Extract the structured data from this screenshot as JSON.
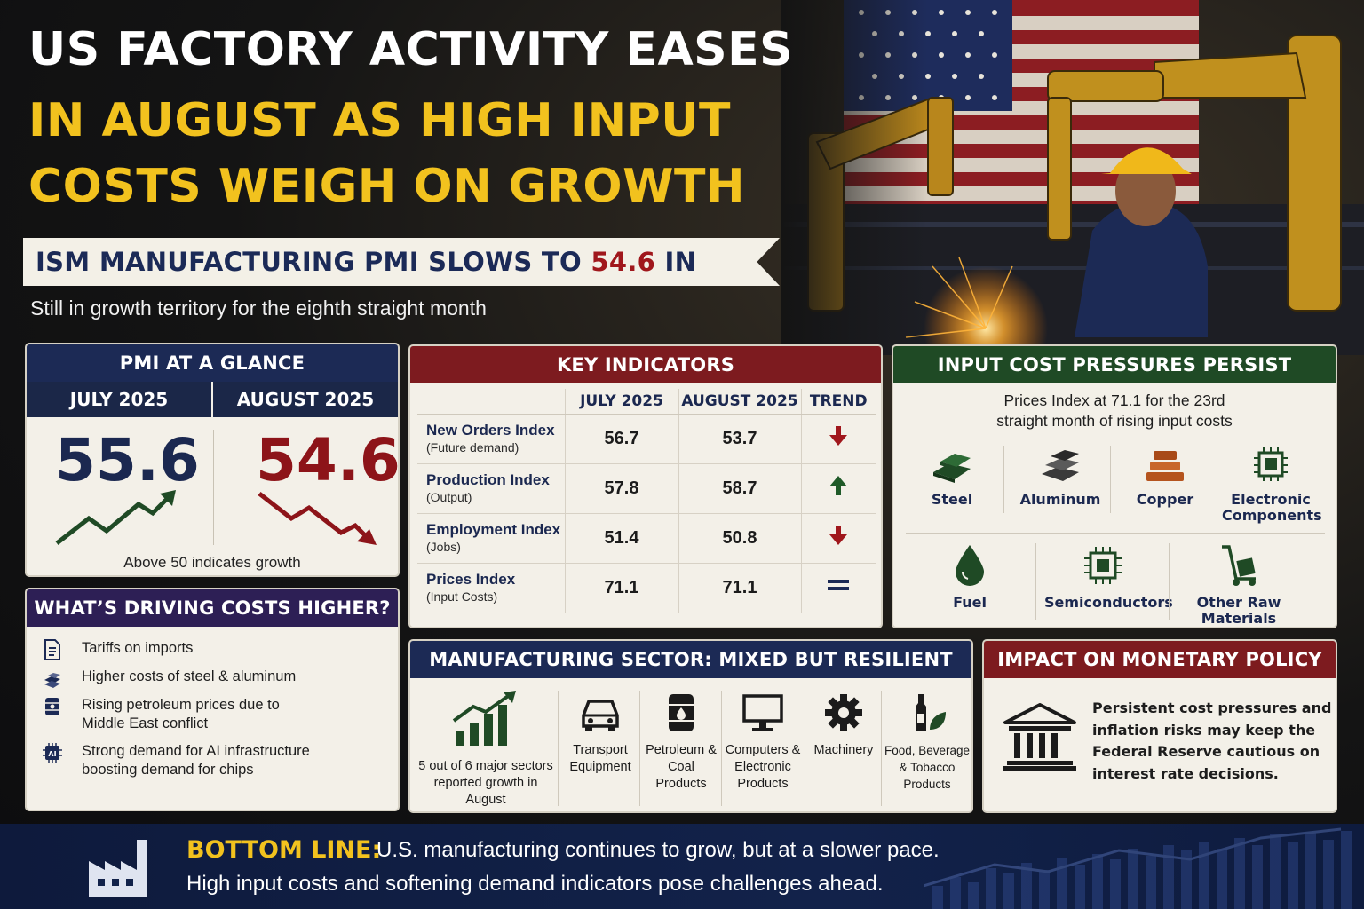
{
  "headline": {
    "line1": "US FACTORY ACTIVITY EASES",
    "line2": "IN AUGUST AS HIGH INPUT",
    "line3": "COSTS WEIGH ON GROWTH"
  },
  "subheadline": {
    "prefix": "ISM MANUFACTURING PMI SLOWS TO ",
    "value": "54.6",
    "suffix": " IN AUGUST"
  },
  "tagline": "Still in growth territory for the eighth straight month",
  "glance": {
    "title": "PMI AT A GLANCE",
    "july_label": "JULY 2025",
    "august_label": "AUGUST 2025",
    "july_value": "55.6",
    "august_value": "54.6",
    "note": "Above 50 indicates growth"
  },
  "driving": {
    "title": "WHAT’S DRIVING COSTS HIGHER?",
    "items": [
      {
        "icon": "document-icon",
        "text": "Tariffs on imports"
      },
      {
        "icon": "metal-bars-icon",
        "text": "Higher costs of steel & aluminum"
      },
      {
        "icon": "oil-barrel-icon",
        "text": "Rising petroleum prices due to Middle East conflict"
      },
      {
        "icon": "ai-chip-icon",
        "text": "Strong demand for AI infrastructure boosting demand for chips"
      }
    ],
    "ai_chip_text": "AI"
  },
  "key_indicators": {
    "title": "KEY INDICATORS",
    "columns": [
      "JULY 2025",
      "AUGUST 2025",
      "TREND"
    ],
    "rows": [
      {
        "label": "New Orders Index",
        "sub": "(Future demand)",
        "july": "56.7",
        "august": "53.7",
        "trend": "down"
      },
      {
        "label": "Production Index",
        "sub": "(Output)",
        "july": "57.8",
        "august": "58.7",
        "trend": "up"
      },
      {
        "label": "Employment Index",
        "sub": "(Jobs)",
        "july": "51.4",
        "august": "50.8",
        "trend": "down"
      },
      {
        "label": "Prices Index",
        "sub": "(Input Costs)",
        "july": "71.1",
        "august": "71.1",
        "trend": "flat"
      }
    ]
  },
  "input_costs": {
    "title": "INPUT COST PRESSURES PERSIST",
    "desc_line1": "Prices Index at 71.1 for the 23rd",
    "desc_line2": "straight month of rising input costs",
    "items": [
      {
        "icon": "steel-icon",
        "label": "Steel"
      },
      {
        "icon": "aluminum-icon",
        "label": "Aluminum"
      },
      {
        "icon": "copper-icon",
        "label": "Copper"
      },
      {
        "icon": "electronic-components-icon",
        "label": "Electronic Components"
      },
      {
        "icon": "fuel-drop-icon",
        "label": "Fuel"
      },
      {
        "icon": "semiconductor-icon",
        "label": "Semiconductors"
      },
      {
        "icon": "hand-truck-icon",
        "label": "Other Raw Materials"
      }
    ]
  },
  "manufacturing": {
    "title": "MANUFACTURING SECTOR: MIXED BUT RESILIENT",
    "summary": "5 out of 6 major sectors reported growth in August",
    "sectors": [
      {
        "icon": "car-icon",
        "label": "Transport Equipment"
      },
      {
        "icon": "barrel-icon",
        "label": "Petroleum & Coal Products"
      },
      {
        "icon": "monitor-icon",
        "label": "Computers & Electronic Products"
      },
      {
        "icon": "gear-icon",
        "label": "Machinery"
      },
      {
        "icon": "bottle-leaf-icon",
        "label": "Food, Beverage & Tobacco Products"
      }
    ]
  },
  "policy": {
    "title": "IMPACT ON MONETARY POLICY",
    "text": "Persistent cost pressures and inflation risks may keep the Federal Reserve cautious on interest rate decisions."
  },
  "bottom_line": {
    "label": "BOTTOM LINE:",
    "line1": "U.S. manufacturing continues to grow, but at a slower pace.",
    "line2": "High input costs and softening demand indicators pose challenges ahead."
  },
  "colors": {
    "navy": "#1c2a55",
    "maroon": "#7d1b1f",
    "green": "#1f4a25",
    "gold": "#f2c21e",
    "red_value": "#8d1419"
  }
}
